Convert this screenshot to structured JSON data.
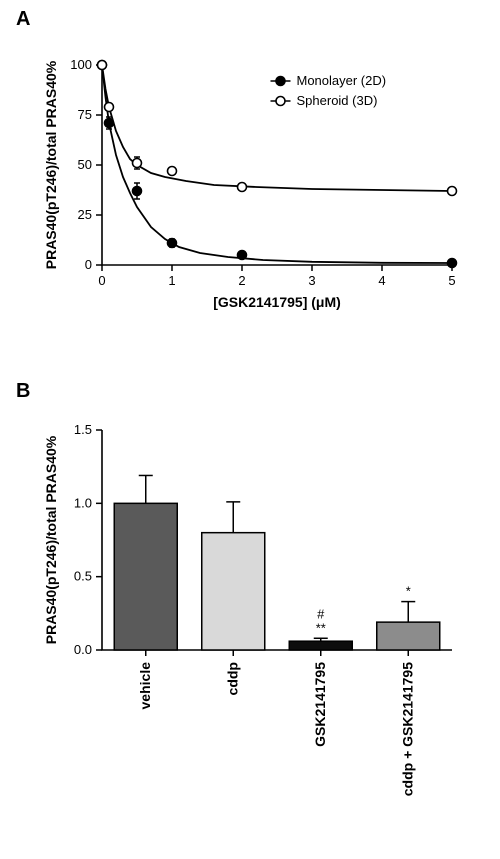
{
  "panelA": {
    "label": "A",
    "chart_type": "line+scatter",
    "x_label": "[GSK2141795] (μM)",
    "y_label": "PRAS40(pT246)/total PRAS40%",
    "xlim": [
      0,
      5
    ],
    "x_ticks": [
      0,
      1,
      2,
      3,
      4,
      5
    ],
    "ylim": [
      0,
      100
    ],
    "y_ticks": [
      0,
      25,
      50,
      75,
      100
    ],
    "bg": "#ffffff",
    "axis_color": "#000000",
    "series": [
      {
        "name": "Monolayer (2D)",
        "marker": "filled",
        "color": "#000000",
        "points": [
          {
            "x": 0,
            "y": 100,
            "err": 0
          },
          {
            "x": 0.1,
            "y": 71,
            "err": 3
          },
          {
            "x": 0.5,
            "y": 37,
            "err": 4
          },
          {
            "x": 1,
            "y": 11,
            "err": 2
          },
          {
            "x": 2,
            "y": 5,
            "err": 0
          },
          {
            "x": 5,
            "y": 1,
            "err": 0
          }
        ],
        "curve": [
          [
            0,
            100
          ],
          [
            0.05,
            84
          ],
          [
            0.1,
            71
          ],
          [
            0.2,
            55
          ],
          [
            0.3,
            44
          ],
          [
            0.4,
            36
          ],
          [
            0.5,
            29
          ],
          [
            0.7,
            19
          ],
          [
            0.9,
            13
          ],
          [
            1.1,
            9
          ],
          [
            1.4,
            6
          ],
          [
            1.8,
            4
          ],
          [
            2.3,
            2.5
          ],
          [
            3,
            1.6
          ],
          [
            4,
            1.1
          ],
          [
            5,
            1
          ]
        ]
      },
      {
        "name": "Spheroid (3D)",
        "marker": "open",
        "color": "#000000",
        "points": [
          {
            "x": 0,
            "y": 100,
            "err": 0
          },
          {
            "x": 0.1,
            "y": 79,
            "err": 1
          },
          {
            "x": 0.5,
            "y": 51,
            "err": 3
          },
          {
            "x": 1,
            "y": 47,
            "err": 1
          },
          {
            "x": 2,
            "y": 39,
            "err": 0
          },
          {
            "x": 5,
            "y": 37,
            "err": 0
          }
        ],
        "curve": [
          [
            0,
            100
          ],
          [
            0.05,
            88
          ],
          [
            0.1,
            79
          ],
          [
            0.2,
            67
          ],
          [
            0.3,
            59
          ],
          [
            0.4,
            53
          ],
          [
            0.5,
            50
          ],
          [
            0.7,
            46
          ],
          [
            0.9,
            44
          ],
          [
            1.2,
            42
          ],
          [
            1.6,
            40
          ],
          [
            2.2,
            39
          ],
          [
            3,
            38
          ],
          [
            4,
            37.5
          ],
          [
            5,
            37
          ]
        ]
      }
    ],
    "legend": {
      "items": [
        "Monolayer (2D)",
        "Spheroid (3D)"
      ],
      "markers": [
        "filled",
        "open"
      ]
    },
    "label_fontsize": 14,
    "tick_fontsize": 13,
    "marker_radius": 4.5,
    "line_width": 1.8
  },
  "panelB": {
    "label": "B",
    "chart_type": "bar",
    "y_label": "PRAS40(pT246)/total PRAS40%",
    "ylim": [
      0,
      1.5
    ],
    "y_ticks": [
      0.0,
      0.5,
      1.0,
      1.5
    ],
    "bg": "#ffffff",
    "bars": [
      {
        "label": "vehicle",
        "value": 1.0,
        "err": 0.19,
        "fill": "#5a5a5a",
        "annot": []
      },
      {
        "label": "cddp",
        "value": 0.8,
        "err": 0.21,
        "fill": "#d9d9d9",
        "annot": []
      },
      {
        "label": "GSK2141795",
        "value": 0.06,
        "err": 0.02,
        "fill": "#0d0d0d",
        "annot": [
          "**",
          "#"
        ]
      },
      {
        "label": "cddp + GSK2141795",
        "value": 0.19,
        "err": 0.14,
        "fill": "#8c8c8c",
        "annot": [
          "*"
        ]
      }
    ],
    "bar_width_ratio": 0.72,
    "label_fontsize": 14,
    "tick_fontsize": 13
  }
}
